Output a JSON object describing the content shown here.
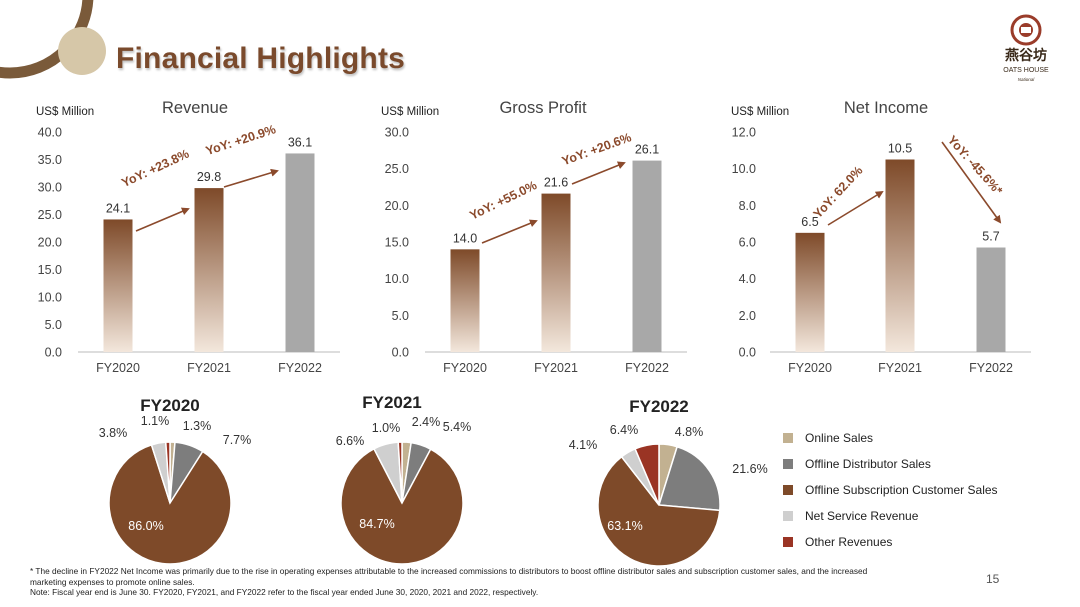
{
  "slide": {
    "title": "Financial Highlights",
    "page_number": "15",
    "logo_text": "燕谷坊",
    "logo_subtext": "OATS HOUSE",
    "logo_small": "National",
    "footnote_lines": [
      "* The decline in FY2022 Net Income was primarily due to the rise in operating expenses attributable to the increased commissions to distributors to boost offline distributor sales and subscription customer sales, and the increased",
      "marketing expenses to promote online sales.",
      "Note: Fiscal year end is June 30. FY2020, FY2021, and FY2022 refer to the fiscal year ended June 30, 2020, 2021 and 2022, respectively."
    ],
    "colors": {
      "title": "#7a4a2c",
      "bar_dark": "#7e4a29",
      "bar_light": "#f3e7dc",
      "bar_gray": "#a8a8a8",
      "arrow": "#8b4a2c"
    }
  },
  "chart_data": [
    {
      "type": "bar",
      "title": "Revenue",
      "unit_label": "US$ Million",
      "categories": [
        "FY2020",
        "FY2021",
        "FY2022"
      ],
      "values": [
        24.1,
        29.8,
        36.1
      ],
      "value_labels": [
        "24.1",
        "29.8",
        "36.1"
      ],
      "ylim": [
        0,
        40
      ],
      "yticks": [
        "0.0",
        "5.0",
        "10.0",
        "15.0",
        "20.0",
        "25.0",
        "30.0",
        "35.0",
        "40.0"
      ],
      "annotations": [
        "YoY: +23.8%",
        "YoY: +20.9%"
      ]
    },
    {
      "type": "bar",
      "title": "Gross Profit",
      "unit_label": "US$ Million",
      "categories": [
        "FY2020",
        "FY2021",
        "FY2022"
      ],
      "values": [
        14.0,
        21.6,
        26.1
      ],
      "value_labels": [
        "14.0",
        "21.6",
        "26.1"
      ],
      "ylim": [
        0,
        30
      ],
      "yticks": [
        "0.0",
        "5.0",
        "10.0",
        "15.0",
        "20.0",
        "25.0",
        "30.0"
      ],
      "annotations": [
        "YoY: +55.0%",
        "YoY: +20.6%"
      ]
    },
    {
      "type": "bar",
      "title": "Net Income",
      "unit_label": "US$ Million",
      "categories": [
        "FY2020",
        "FY2021",
        "FY2022"
      ],
      "values": [
        6.5,
        10.5,
        5.7
      ],
      "value_labels": [
        "6.5",
        "10.5",
        "5.7"
      ],
      "ylim": [
        0,
        12
      ],
      "yticks": [
        "0.0",
        "2.0",
        "4.0",
        "6.0",
        "8.0",
        "10.0",
        "12.0"
      ],
      "annotations": [
        "YoY: 62.0%",
        "YoY: -45.6%*"
      ]
    },
    {
      "type": "pie",
      "title": "FY2020",
      "categories": [
        "Online Sales",
        "Offline Distributor Sales",
        "Offline Subscription Customer Sales",
        "Net Service Revenue",
        "Other Revenues"
      ],
      "values": [
        1.3,
        7.7,
        86.0,
        3.8,
        1.1
      ],
      "value_labels": [
        "1.3%",
        "7.7%",
        "86.0%",
        "3.8%",
        "1.1%"
      ]
    },
    {
      "type": "pie",
      "title": "FY2021",
      "categories": [
        "Online Sales",
        "Offline Distributor Sales",
        "Offline Subscription Customer Sales",
        "Net Service Revenue",
        "Other Revenues"
      ],
      "values": [
        2.4,
        5.4,
        84.7,
        6.6,
        1.0
      ],
      "value_labels": [
        "2.4%",
        "5.4%",
        "84.7%",
        "6.6%",
        "1.0%"
      ]
    },
    {
      "type": "pie",
      "title": "FY2022",
      "categories": [
        "Online Sales",
        "Offline Distributor Sales",
        "Offline Subscription Customer Sales",
        "Net Service Revenue",
        "Other Revenues"
      ],
      "values": [
        4.8,
        21.6,
        63.1,
        4.1,
        6.4
      ],
      "value_labels": [
        "4.8%",
        "21.6%",
        "63.1%",
        "4.1%",
        "6.4%"
      ],
      "legend": [
        "Online Sales",
        "Offline Distributor Sales",
        "Offline Subscription Customer Sales",
        "Net Service Revenue",
        "Other Revenues"
      ],
      "legend_placement": "right",
      "colors": [
        "#c2b191",
        "#7d7d7d",
        "#7e4a29",
        "#cfcfcf",
        "#9a3424"
      ]
    }
  ]
}
